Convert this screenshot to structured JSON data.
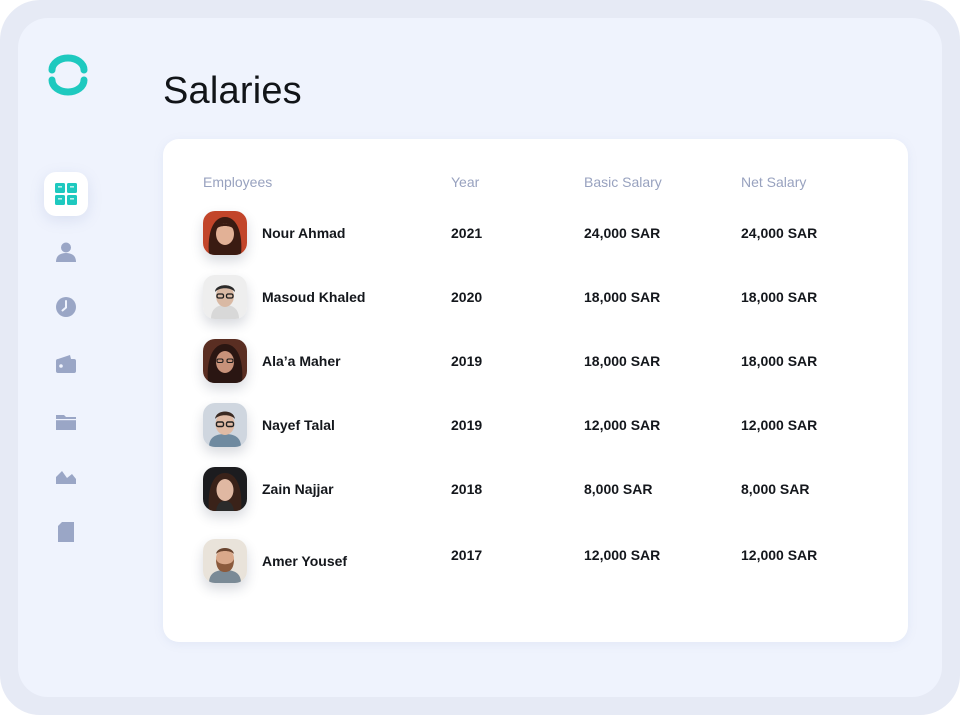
{
  "page": {
    "title": "Salaries"
  },
  "colors": {
    "accent": "#1ec9bf",
    "nav_icon": "#9aa6c6",
    "title": "#111418"
  },
  "sidebar": {
    "items": [
      {
        "icon": "dashboard-icon",
        "active": true
      },
      {
        "icon": "user-icon",
        "active": false
      },
      {
        "icon": "clock-icon",
        "active": false
      },
      {
        "icon": "wallet-icon",
        "active": false
      },
      {
        "icon": "folder-icon",
        "active": false
      },
      {
        "icon": "chart-icon",
        "active": false
      },
      {
        "icon": "document-icon",
        "active": false
      }
    ]
  },
  "table": {
    "headers": {
      "employees": "Employees",
      "year": "Year",
      "basic": "Basic Salary",
      "net": "Net Salary"
    },
    "rows": [
      {
        "name": "Nour Ahmad",
        "year": "2021",
        "basic": "24,000 SAR",
        "net": "24,000 SAR"
      },
      {
        "name": "Masoud Khaled",
        "year": "2020",
        "basic": "18,000 SAR",
        "net": "18,000 SAR"
      },
      {
        "name": "Ala’a Maher",
        "year": "2019",
        "basic": "18,000 SAR",
        "net": "18,000 SAR"
      },
      {
        "name": "Nayef Talal",
        "year": "2019",
        "basic": "12,000 SAR",
        "net": "12,000 SAR"
      },
      {
        "name": "Zain Najjar",
        "year": "2018",
        "basic": "8,000 SAR",
        "net": "8,000 SAR"
      },
      {
        "name": "Amer Yousef",
        "year": "2017",
        "basic": "12,000 SAR",
        "net": "12,000 SAR"
      }
    ]
  }
}
